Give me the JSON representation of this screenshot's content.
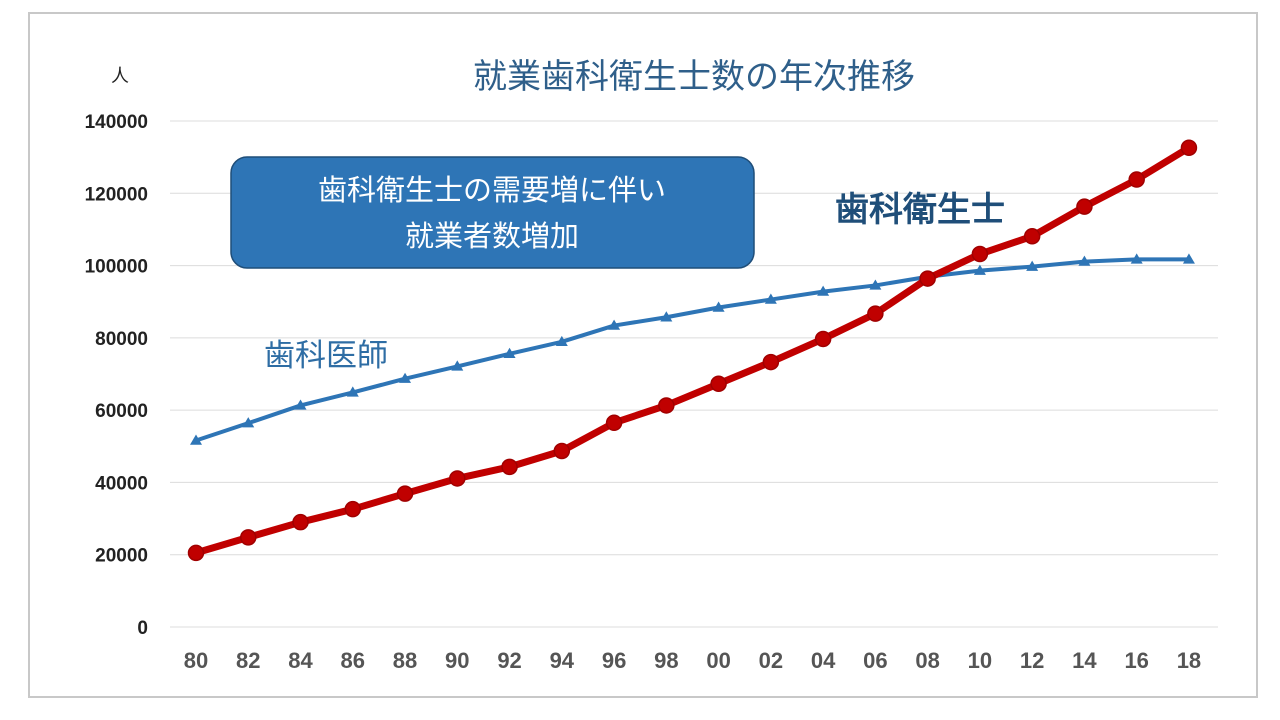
{
  "chart_data": {
    "type": "line",
    "title": "就業歯科衛生士数の年次推移",
    "ylabel": "人",
    "xlabel": "",
    "ylim": [
      0,
      140000
    ],
    "yticks": [
      0,
      20000,
      40000,
      60000,
      80000,
      100000,
      120000,
      140000
    ],
    "grid": true,
    "categories": [
      "80",
      "82",
      "84",
      "86",
      "88",
      "90",
      "92",
      "94",
      "96",
      "98",
      "00",
      "02",
      "04",
      "06",
      "08",
      "10",
      "12",
      "14",
      "16",
      "18"
    ],
    "series": [
      {
        "name": "歯科衛生士",
        "color": "#c00000",
        "marker": "circle",
        "values": [
          20500,
          24800,
          29000,
          32600,
          36900,
          41100,
          44300,
          48700,
          56500,
          61300,
          67300,
          73300,
          79700,
          86700,
          96400,
          103200,
          108100,
          116300,
          123800,
          132600
        ]
      },
      {
        "name": "歯科医師",
        "color": "#2e75b6",
        "marker": "triangle",
        "values": [
          51600,
          56400,
          61300,
          64900,
          68700,
          72100,
          75600,
          78900,
          83400,
          85700,
          88400,
          90600,
          92800,
          94500,
          96900,
          98600,
          99700,
          101100,
          101700,
          101700
        ]
      }
    ],
    "annotations": {
      "callout_line1": "歯科衛生士の需要増に伴い",
      "callout_line2": "就業者数増加"
    }
  }
}
